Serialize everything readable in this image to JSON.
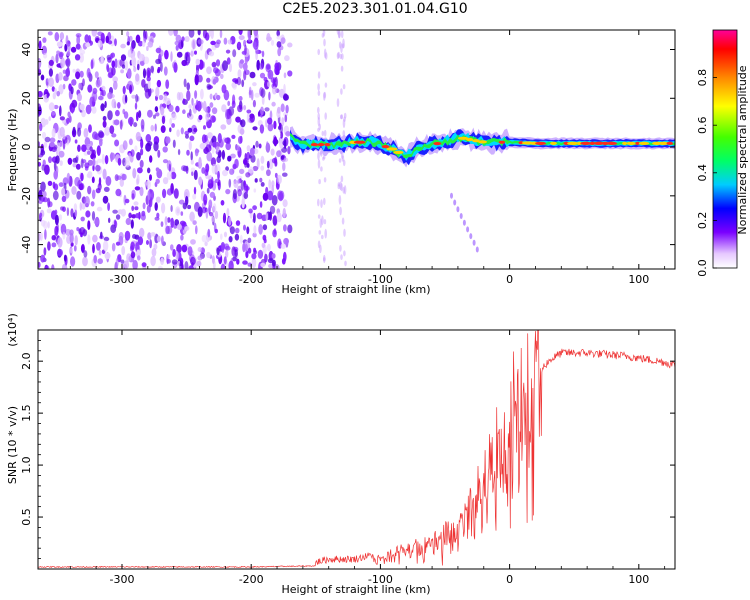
{
  "title": "C2E5.2023.301.01.04.G10",
  "chart_data": [
    {
      "type": "heatmap",
      "xlabel": "Height of straight line (km)",
      "ylabel": "Frequency (Hz)",
      "xlim": [
        -365,
        128
      ],
      "ylim": [
        -50,
        48
      ],
      "x_ticks": [
        -300,
        -200,
        -100,
        0,
        100
      ],
      "y_ticks": [
        -40,
        -20,
        0,
        20,
        40
      ],
      "colorbar": {
        "label": "Normalized spectral amplitude",
        "range": [
          0,
          1
        ],
        "ticks": [
          0.0,
          0.2,
          0.4,
          0.6,
          0.8
        ]
      },
      "noise_region_x": [
        -365,
        -170
      ],
      "signal_track": {
        "x": [
          -170,
          -160,
          -150,
          -140,
          -130,
          -120,
          -110,
          -100,
          -90,
          -80,
          -70,
          -60,
          -50,
          -40,
          -30,
          -20,
          -10,
          0,
          20,
          40,
          60,
          80,
          100,
          128
        ],
        "y": [
          4,
          1,
          1,
          1,
          1,
          2,
          2,
          1,
          -1,
          -4,
          0,
          1,
          2,
          4,
          3,
          2,
          2,
          2,
          1.5,
          1.5,
          1.5,
          1.5,
          1.5,
          1.5
        ]
      },
      "faint_streak": {
        "x": [
          -45,
          -25
        ],
        "y": [
          -20,
          -42
        ]
      }
    },
    {
      "type": "line",
      "xlabel": "Height of straight line (km)",
      "ylabel": "SNR (10 * v/v)",
      "y_multiplier": "(x10⁴)",
      "xlim": [
        -365,
        128
      ],
      "ylim": [
        0,
        2.3
      ],
      "x_ticks": [
        -300,
        -200,
        -100,
        0,
        100
      ],
      "y_ticks": [
        0.5,
        1.0,
        1.5,
        2.0
      ],
      "color": "#ee3333",
      "series": [
        {
          "x": [
            -365,
            -300,
            -200,
            -150,
            -140,
            -120,
            -100,
            -80,
            -60,
            -40,
            -30,
            -20,
            -10,
            0,
            10,
            20,
            30,
            40,
            50,
            60,
            70,
            80,
            90,
            100,
            110,
            120,
            128
          ],
          "values": [
            0.02,
            0.02,
            0.02,
            0.03,
            0.06,
            0.06,
            0.12,
            0.2,
            0.3,
            0.45,
            0.6,
            0.8,
            1.2,
            1.5,
            1.7,
            1.85,
            2.0,
            2.08,
            2.08,
            2.08,
            2.07,
            2.06,
            2.05,
            2.03,
            2.01,
            1.99,
            1.96
          ]
        }
      ]
    }
  ]
}
